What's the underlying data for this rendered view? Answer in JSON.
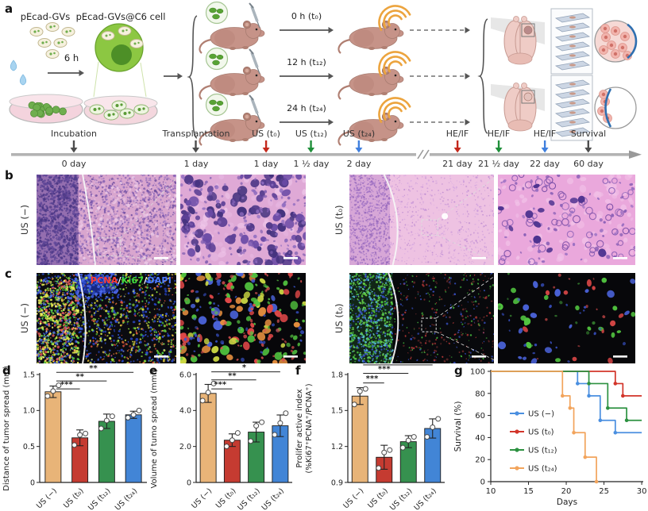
{
  "figure": {
    "panel_letters": {
      "a": "a",
      "b": "b",
      "c": "c",
      "d": "d",
      "e": "e",
      "f": "f",
      "g": "g"
    }
  },
  "panel_a": {
    "cell_prep": {
      "gvs_label": "pEcad-GVs",
      "cell_label": "pEcad-GVs@C6 cell",
      "incubation_time": "6 h"
    },
    "injection_groups": [
      {
        "label": "0 h (t₀)"
      },
      {
        "label": "12 h (t₁₂)"
      },
      {
        "label": "24 h (t₂₄)"
      }
    ],
    "timeline": [
      {
        "top": "Incubation",
        "day": "0 day",
        "color": "#4d4d4d"
      },
      {
        "top": "Transplantation",
        "day": "1 day",
        "color": "#4d4d4d"
      },
      {
        "top": "US (t₀)",
        "day": "1 day",
        "color": "#c4281c"
      },
      {
        "top": "US (t₁₂)",
        "day": "1 ½ day",
        "color": "#1f8f3a"
      },
      {
        "top": "US (t₂₄)",
        "day": "2 day",
        "color": "#3f7fde"
      },
      {
        "top": "HE/IF",
        "day": "21 day",
        "color": "#c4281c"
      },
      {
        "top": "HE/IF",
        "day": "21 ½ day",
        "color": "#1f8f3a"
      },
      {
        "top": "HE/IF",
        "day": "22 day",
        "color": "#3f7fde"
      },
      {
        "top": "Survival",
        "day": "60 day",
        "color": "#4d4d4d"
      }
    ]
  },
  "panel_b": {
    "row_label_left": "US (−)",
    "row_label_right": "US (t₀)"
  },
  "panel_c": {
    "row_label_left": "US (−)",
    "row_label_right": "US (t₀)",
    "stain_separator": "/",
    "stain_legend": [
      {
        "text": "PCNA",
        "color": "#ff3b30"
      },
      {
        "text": "Ki67",
        "color": "#3ddc3d"
      },
      {
        "text": "DAPI",
        "color": "#4d7bff"
      }
    ]
  },
  "chart_data": [
    {
      "id": "d",
      "type": "bar",
      "ylabel": "Distance of tumor spread (mm)",
      "categories": [
        "US (−)",
        "US (t₀)",
        "US (t₁₂)",
        "US (t₂₄)"
      ],
      "values": [
        1.26,
        0.62,
        0.85,
        0.94
      ],
      "errors": [
        0.08,
        0.11,
        0.1,
        0.05
      ],
      "points": [
        [
          1.2,
          1.27,
          1.35
        ],
        [
          0.52,
          0.66,
          0.68
        ],
        [
          0.75,
          0.86,
          0.92
        ],
        [
          0.9,
          0.94,
          1.0
        ]
      ],
      "bar_colors": [
        "#e8b478",
        "#c53b31",
        "#36914f",
        "#4285d6"
      ],
      "ylim": [
        0,
        1.5
      ],
      "yticks": [
        0,
        0.5,
        1.0,
        1.5
      ],
      "ytick_labels": [
        "0",
        "0.5",
        "1.0",
        "1.5"
      ],
      "significance": [
        {
          "from": 0,
          "to": 1,
          "label": "***",
          "y": 1.3
        },
        {
          "from": 0,
          "to": 2,
          "label": "**",
          "y": 1.41
        },
        {
          "from": 0,
          "to": 3,
          "label": "**",
          "y": 1.53
        }
      ]
    },
    {
      "id": "e",
      "type": "bar",
      "ylabel": "Volume of tumo spread (mm³)",
      "categories": [
        "US (−)",
        "US (t₀)",
        "US (t₁₂)",
        "US (t₂₄)"
      ],
      "values": [
        4.95,
        2.35,
        2.8,
        3.15
      ],
      "errors": [
        0.5,
        0.35,
        0.55,
        0.6
      ],
      "points": [
        [
          4.55,
          5.0,
          5.5
        ],
        [
          2.0,
          2.35,
          2.75
        ],
        [
          2.3,
          3.15,
          3.35
        ],
        [
          2.65,
          3.3,
          3.85
        ]
      ],
      "bar_colors": [
        "#e8b478",
        "#c53b31",
        "#36914f",
        "#4285d6"
      ],
      "ylim": [
        0,
        6
      ],
      "yticks": [
        0,
        2,
        4,
        6
      ],
      "ytick_labels": [
        "0",
        "2.0",
        "4.0",
        "6.0"
      ],
      "significance": [
        {
          "from": 0,
          "to": 1,
          "label": "***",
          "y": 5.2
        },
        {
          "from": 0,
          "to": 2,
          "label": "**",
          "y": 5.7
        },
        {
          "from": 0,
          "to": 3,
          "label": "*",
          "y": 6.15
        }
      ]
    },
    {
      "id": "f",
      "type": "bar",
      "ylabel": [
        "Prolifer active index",
        "(%Ki67⁺PCNA⁺/PCNA⁺)"
      ],
      "categories": [
        "US (−)",
        "US (t₀)",
        "US (t₁₂)",
        "US (t₂₄)"
      ],
      "values": [
        1.62,
        1.11,
        1.24,
        1.35
      ],
      "errors": [
        0.07,
        0.1,
        0.05,
        0.08
      ],
      "points": [
        [
          1.55,
          1.66,
          1.68
        ],
        [
          1.02,
          1.15,
          1.17
        ],
        [
          1.19,
          1.25,
          1.28
        ],
        [
          1.28,
          1.36,
          1.43
        ]
      ],
      "bar_colors": [
        "#e8b478",
        "#c53b31",
        "#36914f",
        "#4285d6"
      ],
      "ylim": [
        0.9,
        1.8
      ],
      "yticks": [
        0.9,
        1.2,
        1.5,
        1.8
      ],
      "ytick_labels": [
        "0.9",
        "1.2",
        "1.5",
        "1.8"
      ],
      "significance": [
        {
          "from": 0,
          "to": 1,
          "label": "***",
          "y": 1.73
        },
        {
          "from": 0,
          "to": 2,
          "label": "***",
          "y": 1.81
        },
        {
          "from": 0,
          "to": 3,
          "label": "**",
          "y": 1.88
        }
      ]
    },
    {
      "id": "g",
      "type": "line",
      "ylabel": "Survival (%)",
      "xlabel": "Days",
      "xlim": [
        10,
        30.2
      ],
      "ylim": [
        0,
        100
      ],
      "xticks": [
        10,
        15,
        20,
        25,
        30
      ],
      "yticks": [
        0,
        20,
        40,
        60,
        80,
        100
      ],
      "legend_position": "left-middle",
      "series": [
        {
          "name": "US (−)",
          "color": "#4a8fe0",
          "points": [
            [
              10,
              100
            ],
            [
              21.5,
              100
            ],
            [
              21.5,
              88.9
            ],
            [
              23,
              88.9
            ],
            [
              23,
              77.8
            ],
            [
              24.5,
              77.8
            ],
            [
              24.5,
              55.6
            ],
            [
              26.5,
              55.6
            ],
            [
              26.5,
              44.4
            ],
            [
              30,
              44.4
            ]
          ]
        },
        {
          "name": "US (t₀)",
          "color": "#d2352a",
          "points": [
            [
              10,
              100
            ],
            [
              26.5,
              100
            ],
            [
              26.5,
              88.9
            ],
            [
              27.5,
              88.9
            ],
            [
              27.5,
              77.8
            ],
            [
              30,
              77.8
            ]
          ]
        },
        {
          "name": "US (t₁₂)",
          "color": "#2c9140",
          "points": [
            [
              10,
              100
            ],
            [
              23,
              100
            ],
            [
              23,
              88.9
            ],
            [
              25.5,
              88.9
            ],
            [
              25.5,
              66.7
            ],
            [
              28,
              66.7
            ],
            [
              28,
              55.6
            ],
            [
              30,
              55.6
            ]
          ]
        },
        {
          "name": "US (t₂₄)",
          "color": "#f2a45c",
          "points": [
            [
              10,
              100
            ],
            [
              19.5,
              100
            ],
            [
              19.5,
              77.8
            ],
            [
              20.5,
              77.8
            ],
            [
              20.5,
              66.7
            ],
            [
              21,
              66.7
            ],
            [
              21,
              44.4
            ],
            [
              22.5,
              44.4
            ],
            [
              22.5,
              22.2
            ],
            [
              24,
              22.2
            ],
            [
              24,
              0
            ]
          ]
        }
      ]
    }
  ],
  "theme": {
    "bar_tan": "#e8b478",
    "bar_red": "#c53b31",
    "bar_green": "#36914f",
    "bar_blue": "#4285d6",
    "timeline_red": "#c4281c",
    "timeline_green": "#1f8f3a",
    "timeline_blue": "#3f7fde",
    "timeline_dark": "#4d4d4d",
    "us_wave_orange": "#eca43e"
  }
}
